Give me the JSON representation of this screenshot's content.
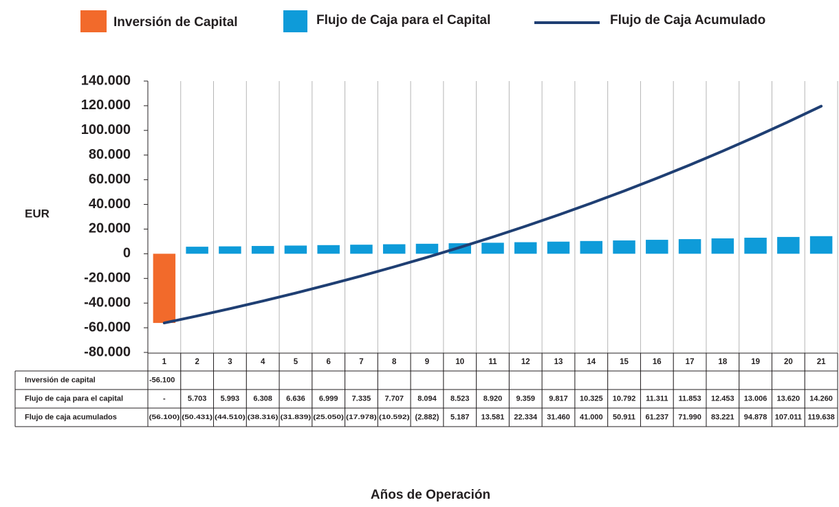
{
  "chart_data": {
    "type": "bar_line",
    "y_label": "EUR",
    "x_label": "Años de Operación",
    "categories": [
      1,
      2,
      3,
      4,
      5,
      6,
      7,
      8,
      9,
      10,
      11,
      12,
      13,
      14,
      15,
      16,
      17,
      18,
      19,
      20,
      21
    ],
    "ylim": [
      -80000,
      140000
    ],
    "yticks": [
      {
        "value": -80000,
        "label": "-80.000"
      },
      {
        "value": -60000,
        "label": "-60.000"
      },
      {
        "value": -40000,
        "label": "-40.000"
      },
      {
        "value": -20000,
        "label": "-20.000"
      },
      0,
      {
        "value": 20000,
        "label": "20.000"
      },
      {
        "value": 40000,
        "label": "40.000"
      },
      {
        "value": 60000,
        "label": "60.000"
      },
      {
        "value": 80000,
        "label": "80.000"
      },
      {
        "value": 100000,
        "label": "100.000"
      },
      {
        "value": 120000,
        "label": "120.000"
      },
      {
        "value": 140000,
        "label": "140.000"
      }
    ],
    "table_row_labels": [
      "Inversión de capital",
      "Flujo de caja para el capital",
      "Flujo de caja acumulados"
    ],
    "series": [
      {
        "name": "Inversión de Capital",
        "type": "bar",
        "color": "#f26a2b",
        "values": [
          -56100,
          null,
          null,
          null,
          null,
          null,
          null,
          null,
          null,
          null,
          null,
          null,
          null,
          null,
          null,
          null,
          null,
          null,
          null,
          null,
          null
        ],
        "value_labels": [
          "-56.100",
          null,
          null,
          null,
          null,
          null,
          null,
          null,
          null,
          null,
          null,
          null,
          null,
          null,
          null,
          null,
          null,
          null,
          null,
          null,
          null
        ]
      },
      {
        "name": "Flujo de Caja para el Capital",
        "type": "bar",
        "color": "#0e9bd9",
        "values": [
          null,
          5703,
          5993,
          6308,
          6636,
          6999,
          7335,
          7707,
          8094,
          8523,
          8920,
          9359,
          9817,
          10325,
          10792,
          11311,
          11853,
          12453,
          13006,
          13620,
          14260
        ],
        "value_labels": [
          "-",
          "5.703",
          "5.993",
          "6.308",
          "6.636",
          "6.999",
          "7.335",
          "7.707",
          "8.094",
          "8.523",
          "8.920",
          "9.359",
          "9.817",
          "10.325",
          "10.792",
          "11.311",
          "11.853",
          "12.453",
          "13.006",
          "13.620",
          "14.260"
        ]
      },
      {
        "name": "Flujo de Caja Acumulado",
        "type": "line",
        "color": "#1f3f73",
        "values": [
          -56100,
          -50431,
          -44510,
          -38316,
          -31839,
          -25050,
          -17978,
          -10592,
          -2882,
          5187,
          13581,
          22334,
          31460,
          41000,
          50911,
          61237,
          71990,
          83221,
          94878,
          107011,
          119638
        ],
        "value_labels": [
          "(56.100)",
          "(50.431)",
          "(44.510)",
          "(38.316)",
          "(31.839)",
          "(25.050)",
          "(17.978)",
          "(10.592)",
          "(2.882)",
          "5.187",
          "13.581",
          "22.334",
          "31.460",
          "41.000",
          "50.911",
          "61.237",
          "71.990",
          "83.221",
          "94.878",
          "107.011",
          "119.638"
        ]
      }
    ]
  }
}
